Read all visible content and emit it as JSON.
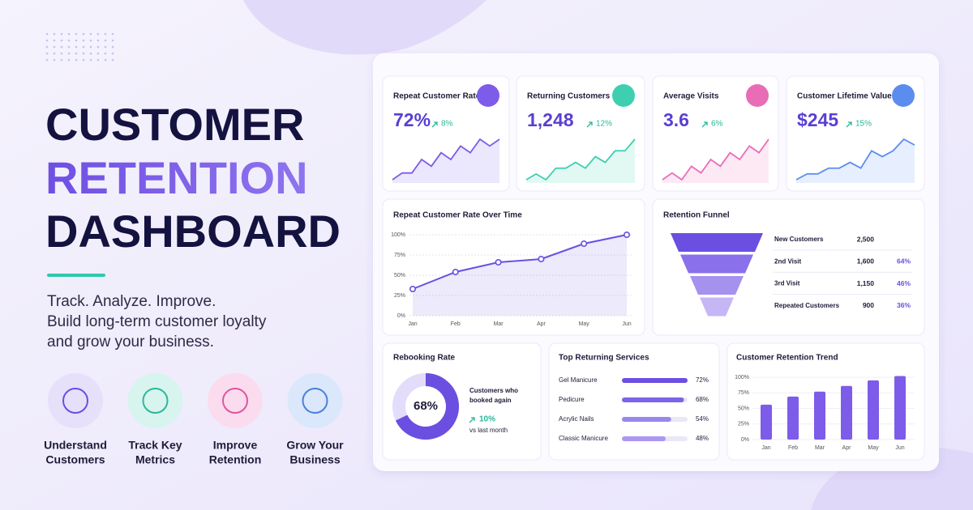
{
  "hero": {
    "title_lines": [
      "CUSTOMER",
      "RETENTION",
      "DASHBOARD"
    ],
    "tagline_lines": [
      "Track. Analyze. Improve.",
      "Build long-term customer loyalty",
      "and grow your business."
    ],
    "features": [
      {
        "lines": [
          "Understand",
          "Customers"
        ]
      },
      {
        "lines": [
          "Track Key",
          "Metrics"
        ]
      },
      {
        "lines": [
          "Improve",
          "Retention"
        ]
      },
      {
        "lines": [
          "Grow Your",
          "Business"
        ]
      }
    ]
  },
  "kpis": [
    {
      "title": "Repeat Customer Rate",
      "value": "72%",
      "change": "8%",
      "color": "#7c5ce8",
      "trend": [
        2,
        3,
        3,
        5,
        4,
        6,
        5,
        7,
        6,
        8,
        7,
        8
      ]
    },
    {
      "title": "Returning Customers",
      "value": "1,248",
      "change": "12%",
      "color": "#3ecfb0",
      "trend": [
        2,
        3,
        2,
        4,
        4,
        5,
        4,
        6,
        5,
        7,
        7,
        9
      ]
    },
    {
      "title": "Average Visits",
      "value": "3.6",
      "change": "6%",
      "color": "#e86db6",
      "trend": [
        2,
        3,
        2,
        4,
        3,
        5,
        4,
        6,
        5,
        7,
        6,
        8
      ]
    },
    {
      "title": "Customer Lifetime Value",
      "value": "$245",
      "change": "15%",
      "color": "#5b8def",
      "trend": [
        2,
        3,
        3,
        4,
        4,
        5,
        4,
        7,
        6,
        7,
        9,
        8
      ]
    }
  ],
  "line_chart": {
    "type": "line",
    "title": "Repeat Customer Rate Over Time",
    "categories": [
      "Jan",
      "Feb",
      "Mar",
      "Apr",
      "May",
      "Jun"
    ],
    "values": [
      33,
      54,
      66,
      70,
      89,
      100
    ],
    "color": "#6b4fe0",
    "ylim": [
      0,
      100
    ],
    "yticks": [
      {
        "value": 0,
        "label": "0%"
      },
      {
        "value": 25,
        "label": "25%"
      },
      {
        "value": 50,
        "label": "50%"
      },
      {
        "value": 75,
        "label": "75%"
      },
      {
        "value": 100,
        "label": "100%"
      }
    ],
    "grid": true
  },
  "funnel": {
    "title": "Retention Funnel",
    "rows": [
      {
        "stage": "New Customers",
        "count": "2,500"
      },
      {
        "stage": "2nd Visit",
        "count": "1,600",
        "percent": "64%"
      },
      {
        "stage": "3rd Visit",
        "count": "1,150",
        "percent": "46%"
      },
      {
        "stage": "Repeated Customers",
        "count": "900",
        "percent": "36%"
      }
    ]
  },
  "rebooking": {
    "title": "Rebooking Rate",
    "value": 68,
    "value_label": "68%",
    "lim": [
      0,
      100
    ],
    "caption": "Customers who booked again",
    "change": "10%",
    "note": "vs last month"
  },
  "services": {
    "title": "Top Returning Services",
    "xlim": [
      0,
      72
    ],
    "items": [
      {
        "name": "Gel Manicure",
        "value": 72,
        "value_label": "72%"
      },
      {
        "name": "Pedicure",
        "value": 68,
        "value_label": "68%"
      },
      {
        "name": "Acrylic Nails",
        "value": 54,
        "value_label": "54%"
      },
      {
        "name": "Classic Manicure",
        "value": 48,
        "value_label": "48%"
      }
    ]
  },
  "bar_chart": {
    "type": "bar",
    "title": "Customer Retention Trend",
    "categories": [
      "Jan",
      "Feb",
      "Mar",
      "Apr",
      "May",
      "Jun"
    ],
    "values": [
      56,
      69,
      77,
      86,
      95,
      102
    ],
    "color": "#7c5ce8",
    "ylim": [
      0,
      100
    ],
    "yticks": [
      {
        "value": 0,
        "label": "0%"
      },
      {
        "value": 25,
        "label": "25%"
      },
      {
        "value": 50,
        "label": "50%"
      },
      {
        "value": 75,
        "label": "75%"
      },
      {
        "value": 100,
        "label": "100%"
      }
    ]
  }
}
